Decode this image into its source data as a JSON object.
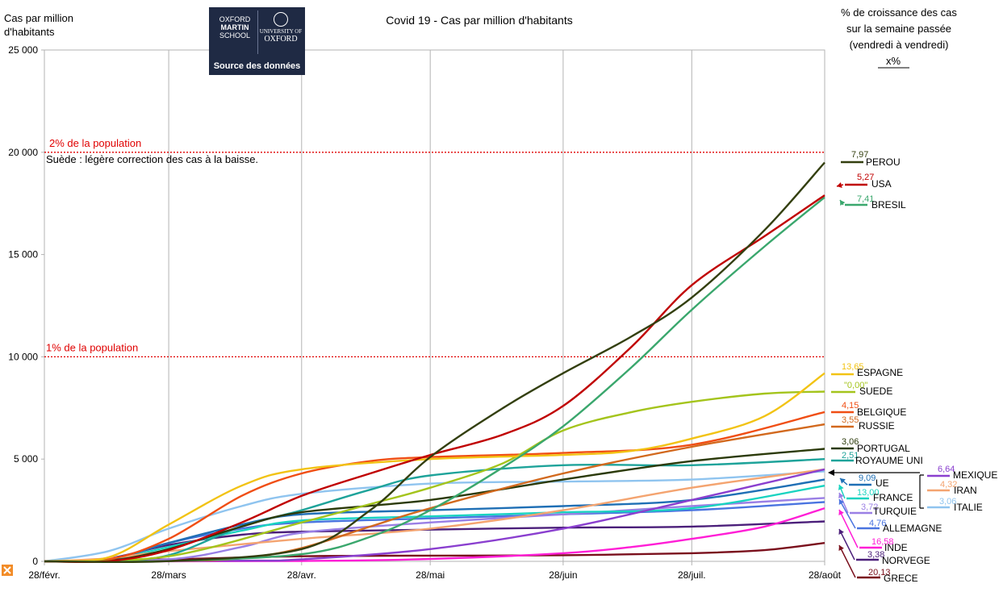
{
  "chart_data": {
    "type": "line",
    "title": "Covid 19 - Cas par million d'habitants",
    "ylabel": "Cas par million d'habitants",
    "ylim": [
      0,
      25000
    ],
    "yticks": [
      0,
      5000,
      10000,
      15000,
      20000,
      25000
    ],
    "ytick_labels": [
      "0",
      "5 000",
      "10 000",
      "15 000",
      "20 000",
      "25 000"
    ],
    "xlim": [
      "2020-02-28",
      "2020-08-28"
    ],
    "x_tick_dates": [
      "2020-02-28",
      "2020-03-28",
      "2020-04-28",
      "2020-05-28",
      "2020-06-28",
      "2020-07-28",
      "2020-08-28"
    ],
    "x_tick_labels": [
      "28/févr.",
      "28/mars",
      "28/avr.",
      "28/mai",
      "28/juin",
      "28/juil.",
      "28/août"
    ],
    "grid": "vertical",
    "reference_lines": [
      {
        "label": "2% de la population",
        "y": 20000
      },
      {
        "label": "1% de la population",
        "y": 10000
      }
    ],
    "annotation": "Suède : légère correction des cas à la baisse.",
    "right_header": [
      "% de croissance des cas",
      "sur la semaine passée",
      "(vendredi à vendredi)",
      "x%"
    ],
    "series": [
      {
        "name": "PEROU",
        "growth": "7,97",
        "color": "#333f0f",
        "x": [
          "2020-02-28",
          "2020-03-28",
          "2020-04-28",
          "2020-05-14",
          "2020-05-28",
          "2020-06-14",
          "2020-06-28",
          "2020-07-14",
          "2020-07-28",
          "2020-08-14",
          "2020-08-28"
        ],
        "values": [
          0,
          10,
          600,
          2500,
          5100,
          7500,
          9200,
          11000,
          12900,
          16200,
          19500
        ]
      },
      {
        "name": "USA",
        "growth": "5,27",
        "color": "#c00000",
        "x": [
          "2020-02-28",
          "2020-03-14",
          "2020-03-28",
          "2020-04-14",
          "2020-04-28",
          "2020-05-14",
          "2020-05-28",
          "2020-06-14",
          "2020-06-28",
          "2020-07-14",
          "2020-07-28",
          "2020-08-14",
          "2020-08-28"
        ],
        "values": [
          0,
          10,
          550,
          1900,
          3200,
          4300,
          5200,
          6200,
          7600,
          10500,
          13500,
          15900,
          17900
        ]
      },
      {
        "name": "BRESIL",
        "growth": "7,41",
        "color": "#3aa76d",
        "x": [
          "2020-02-28",
          "2020-03-28",
          "2020-04-28",
          "2020-05-14",
          "2020-05-28",
          "2020-06-14",
          "2020-06-28",
          "2020-07-14",
          "2020-07-28",
          "2020-08-14",
          "2020-08-28"
        ],
        "values": [
          0,
          10,
          350,
          1200,
          2500,
          4600,
          6600,
          9500,
          12300,
          15400,
          17800
        ]
      },
      {
        "name": "ESPAGNE",
        "growth": "13,65",
        "color": "#f2c314",
        "x": [
          "2020-02-28",
          "2020-03-14",
          "2020-03-28",
          "2020-04-14",
          "2020-04-28",
          "2020-05-28",
          "2020-06-28",
          "2020-07-14",
          "2020-07-28",
          "2020-08-14",
          "2020-08-28"
        ],
        "values": [
          0,
          200,
          1800,
          3700,
          4500,
          5000,
          5200,
          5400,
          6000,
          7100,
          9200
        ]
      },
      {
        "name": "SUEDE",
        "growth": "\"0,00\"",
        "color": "#a4c41c",
        "x": [
          "2020-02-28",
          "2020-03-28",
          "2020-04-28",
          "2020-05-14",
          "2020-05-28",
          "2020-06-14",
          "2020-06-28",
          "2020-07-14",
          "2020-07-28",
          "2020-08-14",
          "2020-08-28"
        ],
        "values": [
          0,
          250,
          1900,
          2800,
          3600,
          4800,
          6400,
          7300,
          7800,
          8200,
          8300
        ]
      },
      {
        "name": "BELGIQUE",
        "growth": "4,15",
        "color": "#f04e14",
        "x": [
          "2020-02-28",
          "2020-03-14",
          "2020-03-28",
          "2020-04-14",
          "2020-04-28",
          "2020-05-14",
          "2020-05-28",
          "2020-06-28",
          "2020-07-28",
          "2020-08-28"
        ],
        "values": [
          0,
          100,
          1100,
          3200,
          4300,
          4900,
          5100,
          5300,
          5700,
          7300
        ]
      },
      {
        "name": "RUSSIE",
        "growth": "3,55",
        "color": "#d2691e",
        "x": [
          "2020-02-28",
          "2020-03-28",
          "2020-04-14",
          "2020-04-28",
          "2020-05-14",
          "2020-05-28",
          "2020-06-28",
          "2020-07-28",
          "2020-08-28"
        ],
        "values": [
          0,
          10,
          150,
          650,
          1700,
          2600,
          4300,
          5600,
          6700
        ]
      },
      {
        "name": "PORTUGAL",
        "growth": "3,06",
        "color": "#2b3a0a",
        "x": [
          "2020-02-28",
          "2020-03-14",
          "2020-03-28",
          "2020-04-14",
          "2020-04-28",
          "2020-05-28",
          "2020-06-28",
          "2020-07-28",
          "2020-08-28"
        ],
        "values": [
          0,
          30,
          600,
          1700,
          2400,
          3000,
          4000,
          4900,
          5500
        ]
      },
      {
        "name": "ROYAUME UNI",
        "growth": "2,51",
        "color": "#1ea39a",
        "x": [
          "2020-02-28",
          "2020-03-14",
          "2020-03-28",
          "2020-04-14",
          "2020-04-28",
          "2020-05-14",
          "2020-05-28",
          "2020-06-28",
          "2020-07-28",
          "2020-08-28"
        ],
        "values": [
          0,
          30,
          300,
          1700,
          2500,
          3500,
          4200,
          4700,
          4700,
          5000
        ]
      },
      {
        "name": "MEXIQUE",
        "growth": "6,64",
        "color": "#8a3fcf",
        "x": [
          "2020-02-28",
          "2020-04-14",
          "2020-04-28",
          "2020-05-28",
          "2020-06-28",
          "2020-07-28",
          "2020-08-28"
        ],
        "values": [
          0,
          30,
          100,
          600,
          1600,
          3000,
          4500
        ]
      },
      {
        "name": "IRAN",
        "growth": "4,32",
        "color": "#f4a470",
        "x": [
          "2020-02-28",
          "2020-03-14",
          "2020-03-28",
          "2020-04-28",
          "2020-05-28",
          "2020-06-28",
          "2020-07-28",
          "2020-08-28"
        ],
        "values": [
          0,
          150,
          500,
          1100,
          1600,
          2500,
          3600,
          4500
        ]
      },
      {
        "name": "ITALIE",
        "growth": "3,06",
        "color": "#8fc4ef",
        "x": [
          "2020-02-28",
          "2020-03-14",
          "2020-03-28",
          "2020-04-14",
          "2020-04-28",
          "2020-05-28",
          "2020-06-28",
          "2020-07-28",
          "2020-08-28"
        ],
        "values": [
          0,
          500,
          1600,
          2700,
          3300,
          3800,
          3900,
          4000,
          4400
        ]
      },
      {
        "name": "UE",
        "growth": "9,09",
        "color": "#1f6fb5",
        "x": [
          "2020-02-28",
          "2020-03-14",
          "2020-03-28",
          "2020-04-14",
          "2020-04-28",
          "2020-05-28",
          "2020-06-28",
          "2020-07-28",
          "2020-08-28"
        ],
        "values": [
          0,
          100,
          900,
          1800,
          2300,
          2500,
          2700,
          3000,
          4000
        ]
      },
      {
        "name": "FRANCE",
        "growth": "13,00",
        "color": "#19d3c0",
        "x": [
          "2020-02-28",
          "2020-03-14",
          "2020-03-28",
          "2020-04-14",
          "2020-04-28",
          "2020-05-28",
          "2020-06-28",
          "2020-07-28",
          "2020-08-28"
        ],
        "values": [
          0,
          100,
          700,
          1500,
          2000,
          2200,
          2400,
          2600,
          3700
        ]
      },
      {
        "name": "TURQUIE",
        "growth": "3,72",
        "color": "#9a7fe5",
        "x": [
          "2020-02-28",
          "2020-03-28",
          "2020-04-14",
          "2020-04-28",
          "2020-05-28",
          "2020-06-28",
          "2020-07-28",
          "2020-08-28"
        ],
        "values": [
          0,
          100,
          700,
          1400,
          1900,
          2300,
          2700,
          3100
        ]
      },
      {
        "name": "ALLEMAGNE",
        "growth": "4,76",
        "color": "#4a74e0",
        "x": [
          "2020-02-28",
          "2020-03-14",
          "2020-03-28",
          "2020-04-14",
          "2020-04-28",
          "2020-05-28",
          "2020-06-28",
          "2020-07-28",
          "2020-08-28"
        ],
        "values": [
          0,
          100,
          900,
          1600,
          1900,
          2100,
          2300,
          2500,
          2900
        ]
      },
      {
        "name": "INDE",
        "growth": "16,58",
        "color": "#ff1ed6",
        "x": [
          "2020-02-28",
          "2020-04-28",
          "2020-05-28",
          "2020-06-28",
          "2020-07-14",
          "2020-07-28",
          "2020-08-14",
          "2020-08-28"
        ],
        "values": [
          0,
          20,
          120,
          400,
          700,
          1100,
          1700,
          2600
        ]
      },
      {
        "name": "NORVEGE",
        "growth": "3,38",
        "color": "#4b1f7a",
        "x": [
          "2020-02-28",
          "2020-03-14",
          "2020-03-28",
          "2020-04-14",
          "2020-04-28",
          "2020-05-28",
          "2020-06-28",
          "2020-07-28",
          "2020-08-28"
        ],
        "values": [
          0,
          150,
          800,
          1300,
          1450,
          1550,
          1650,
          1700,
          1950
        ]
      },
      {
        "name": "GRECE",
        "growth": "20,13",
        "color": "#7a0f1c",
        "x": [
          "2020-02-28",
          "2020-03-28",
          "2020-04-28",
          "2020-05-28",
          "2020-06-28",
          "2020-07-28",
          "2020-08-14",
          "2020-08-28"
        ],
        "values": [
          0,
          100,
          250,
          280,
          300,
          400,
          550,
          900
        ]
      }
    ]
  },
  "logo": {
    "left_lines": [
      "OXFORD",
      "MARTIN",
      "SCHOOL"
    ],
    "right_small": "UNIVERSITY OF",
    "right_big": "OXFORD",
    "source": "Source des données"
  }
}
